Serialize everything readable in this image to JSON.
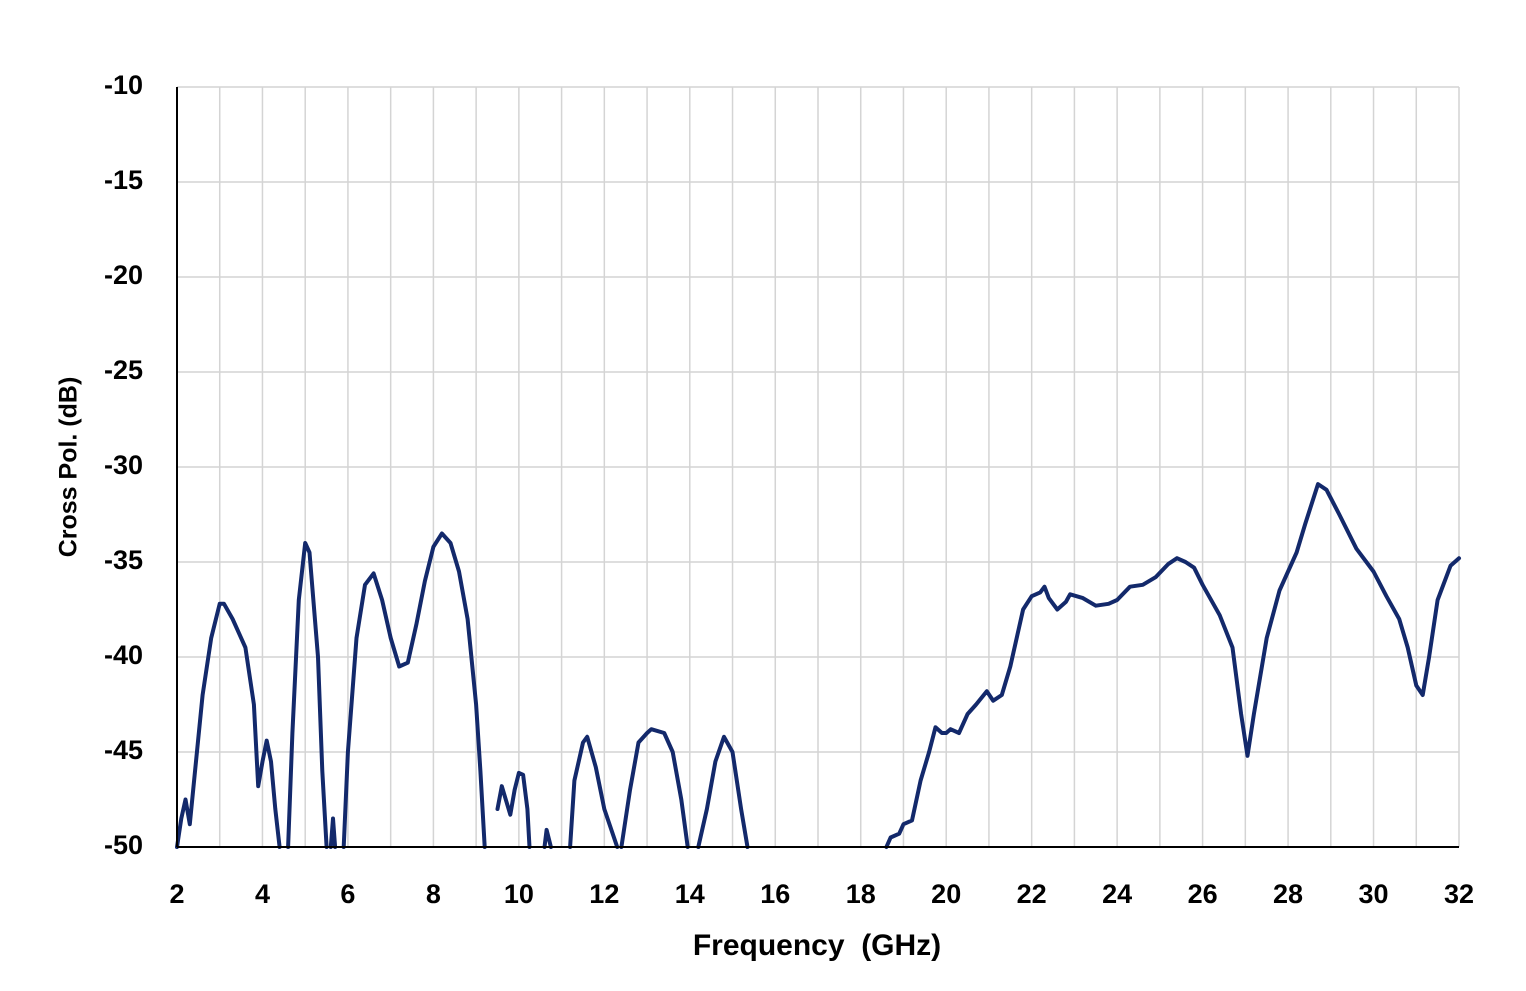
{
  "chart_data": {
    "type": "line",
    "x_label": "Frequency  (GHz)",
    "y_label": "Cross Pol. (dB)",
    "xlim": [
      2,
      32
    ],
    "ylim": [
      -50,
      -10
    ],
    "xticks": [
      2,
      4,
      6,
      8,
      10,
      12,
      14,
      16,
      18,
      20,
      22,
      24,
      26,
      28,
      30,
      32
    ],
    "x_minor_grid": [
      3,
      5,
      7,
      9,
      11,
      13,
      15,
      17,
      19,
      21,
      23,
      25,
      27,
      29,
      31
    ],
    "yticks": [
      -50,
      -45,
      -40,
      -35,
      -30,
      -25,
      -20,
      -15,
      -10
    ],
    "grid": true,
    "x": [
      2.0,
      2.1,
      2.2,
      2.3,
      2.4,
      2.6,
      2.8,
      3.0,
      3.1,
      3.3,
      3.6,
      3.8,
      3.9,
      4.0,
      4.1,
      4.2,
      4.3,
      4.4,
      4.5,
      4.6,
      4.7,
      4.85,
      5.0,
      5.1,
      5.3,
      5.4,
      5.5,
      5.55,
      5.6,
      5.65,
      5.7,
      5.8,
      5.9,
      6.0,
      6.2,
      6.4,
      6.6,
      6.8,
      7.0,
      7.2,
      7.4,
      7.6,
      7.8,
      8.0,
      8.2,
      8.4,
      8.6,
      8.8,
      9.0,
      9.1,
      9.2,
      9.35,
      9.5,
      9.6,
      9.8,
      9.9,
      10.0,
      10.1,
      10.2,
      10.25,
      10.4,
      10.6,
      10.65,
      10.75,
      11.0,
      11.2,
      11.3,
      11.5,
      11.6,
      11.8,
      12.0,
      12.3,
      12.35,
      12.4,
      12.6,
      12.8,
      13.0,
      13.1,
      13.4,
      13.6,
      13.8,
      13.95,
      14.1,
      14.2,
      14.4,
      14.6,
      14.8,
      15.0,
      15.2,
      15.35,
      17.0,
      18.6,
      18.7,
      18.9,
      19.0,
      19.2,
      19.4,
      19.6,
      19.75,
      19.9,
      20.0,
      20.1,
      20.3,
      20.5,
      20.7,
      20.95,
      21.1,
      21.3,
      21.5,
      21.8,
      22.0,
      22.2,
      22.3,
      22.4,
      22.6,
      22.8,
      22.9,
      23.2,
      23.5,
      23.8,
      24.0,
      24.3,
      24.6,
      24.9,
      25.2,
      25.4,
      25.6,
      25.8,
      26.0,
      26.4,
      26.7,
      26.9,
      27.05,
      27.2,
      27.5,
      27.8,
      28.2,
      28.4,
      28.7,
      28.9,
      29.2,
      29.6,
      30.0,
      30.3,
      30.6,
      30.8,
      31.0,
      31.15,
      31.3,
      31.5,
      31.8,
      32.0
    ],
    "series": [
      {
        "name": "Cross Pol.",
        "color": "#13296b",
        "values": [
          -50,
          -48.5,
          -47.5,
          -48.8,
          -46.5,
          -42,
          -39,
          -37.2,
          -37.2,
          -38,
          -39.5,
          -42.5,
          -46.8,
          -45.5,
          -44.4,
          -45.5,
          -48,
          -50,
          null,
          -50,
          -44,
          -37,
          -34,
          -34.5,
          -40,
          -46,
          -50,
          null,
          -50,
          -48.5,
          -50,
          null,
          -50,
          -45,
          -39,
          -36.2,
          -35.6,
          -37,
          -39,
          -40.5,
          -40.3,
          -38.3,
          -36,
          -34.2,
          -33.5,
          -34,
          -35.5,
          -38,
          -42.5,
          -46,
          -50,
          null,
          -48,
          -46.8,
          -48.3,
          -47,
          -46.1,
          -46.2,
          -48,
          -50,
          null,
          -50,
          -49.1,
          -50,
          null,
          -50,
          -46.5,
          -44.5,
          -44.2,
          -45.8,
          -48,
          -50,
          null,
          -50,
          -47,
          -44.5,
          -44,
          -43.8,
          -44,
          -45,
          -47.5,
          -50,
          null,
          -50,
          -48,
          -45.5,
          -44.2,
          -45,
          -48,
          -50,
          null,
          -50,
          -49.5,
          -49.3,
          -48.8,
          -48.6,
          -46.5,
          -45,
          -43.7,
          -44,
          -44,
          -43.8,
          -44,
          -43,
          -42.5,
          -41.8,
          -42.3,
          -42,
          -40.5,
          -37.5,
          -36.8,
          -36.6,
          -36.3,
          -36.9,
          -37.5,
          -37.1,
          -36.7,
          -36.9,
          -37.3,
          -37.2,
          -37,
          -36.3,
          -36.2,
          -35.8,
          -35.1,
          -34.8,
          -35,
          -35.3,
          -36.2,
          -37.8,
          -39.5,
          -43,
          -45.2,
          -43,
          -39,
          -36.5,
          -34.5,
          -33,
          -30.9,
          -31.2,
          -32.5,
          -34.3,
          -35.5,
          -36.8,
          -38,
          -39.5,
          -41.5,
          -42,
          -40,
          -37,
          -35.2,
          -34.8
        ]
      }
    ]
  }
}
